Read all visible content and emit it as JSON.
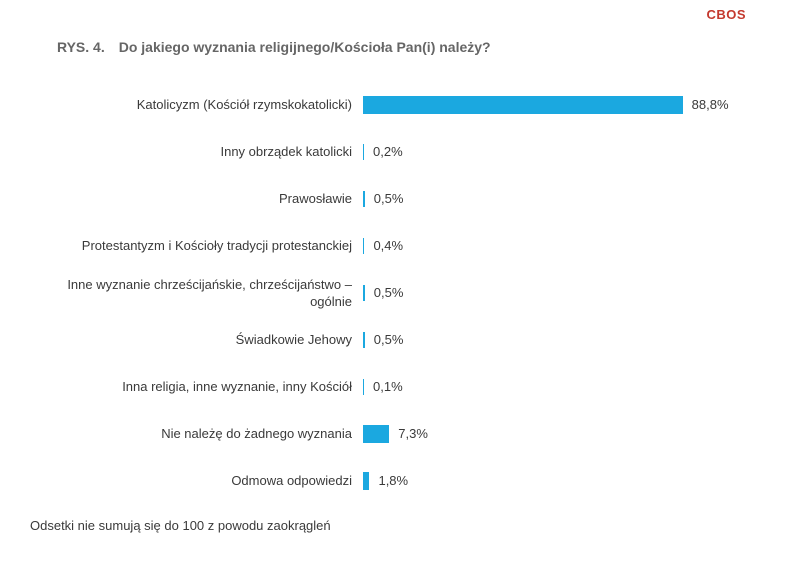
{
  "logo": "CBOS",
  "logo_color": "#c4392e",
  "title": {
    "prefix": "RYS. 4.",
    "question": "Do jakiego wyznania religijnego/Kościoła Pan(i) należy?"
  },
  "chart_data": {
    "type": "bar",
    "orientation": "horizontal",
    "unit": "%",
    "bar_color": "#1ba8e0",
    "xlim": [
      0,
      100
    ],
    "grid": false,
    "value_label_position": "right-of-bar",
    "categories": [
      "Katolicyzm (Kościół rzymskokatolicki)",
      "Inny obrządek katolicki",
      "Prawosławie",
      "Protestantyzm i Kościoły tradycji protestanckiej",
      "Inne wyznanie chrześcijańskie, chrześcijaństwo –\nogólnie",
      "Świadkowie Jehowy",
      "Inna religia, inne wyznanie, inny Kościół",
      "Nie należę do żadnego wyznania",
      "Odmowa odpowiedzi"
    ],
    "values": [
      88.8,
      0.2,
      0.5,
      0.4,
      0.5,
      0.5,
      0.1,
      7.3,
      1.8
    ],
    "value_labels": [
      "88,8%",
      "0,2%",
      "0,5%",
      "0,4%",
      "0,5%",
      "0,5%",
      "0,1%",
      "7,3%",
      "1,8%"
    ]
  },
  "footnote": "Odsetki nie sumują się do 100 z powodu zaokrągleń"
}
